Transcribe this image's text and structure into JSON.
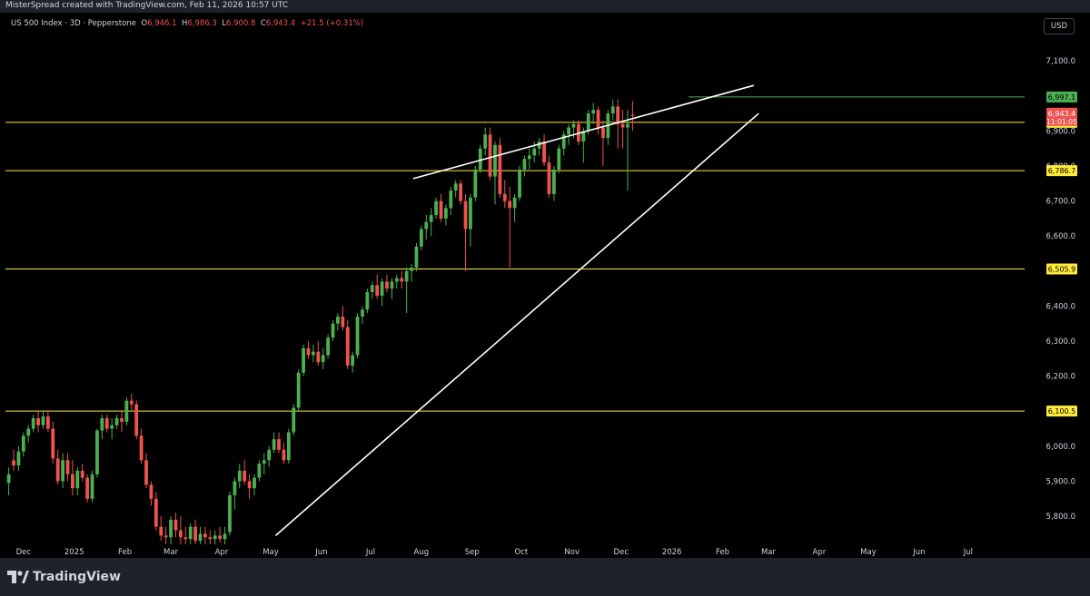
{
  "header": {
    "creator_text": "MisterSpread created with TradingView.com, Feb 11, 2026 10:57 UTC",
    "symbol": "US 500 Index · 3D · Pepperstone",
    "ohlc": {
      "o_label": "O",
      "o": "6,946.1",
      "h_label": "H",
      "h": "6,986.3",
      "l_label": "L",
      "l": "6,900.8",
      "c_label": "C",
      "c": "6,943.4",
      "change": "+21.5 (+0.31%)"
    },
    "currency_button": "USD"
  },
  "footer": {
    "logo_icon": "tradingview-logo-icon",
    "logo_text": "TradingView"
  },
  "colors": {
    "background": "#000000",
    "up": "#4caf50",
    "down": "#ef5350",
    "level_yellow": "#ffeb3b",
    "level_green": "#4caf50",
    "trendline": "#ffffff",
    "grid": "#131722"
  },
  "chart_data": {
    "type": "candlestick",
    "grid": false,
    "ylim": [
      5720,
      7160
    ],
    "y_ticks": [
      5800,
      5900,
      6000,
      6100,
      6200,
      6300,
      6400,
      6500,
      6600,
      6700,
      6800,
      6900,
      7000,
      7100
    ],
    "y_tick_labels": [
      "5,800.0",
      "5,900.0",
      "6,000.0",
      "6,100.0",
      "6,200.0",
      "6,300.0",
      "6,400.0",
      "6,500.0",
      "6,600.0",
      "6,700.0",
      "6,800.0",
      "6,900.0",
      "7,000.0",
      "7,100.0"
    ],
    "x_tick_labels": [
      {
        "label": "Dec",
        "date": "2024-12-01"
      },
      {
        "label": "2025",
        "date": "2025-01-01"
      },
      {
        "label": "Feb",
        "date": "2025-02-01"
      },
      {
        "label": "Mar",
        "date": "2025-03-01"
      },
      {
        "label": "Apr",
        "date": "2025-04-01"
      },
      {
        "label": "May",
        "date": "2025-05-01"
      },
      {
        "label": "Jun",
        "date": "2025-06-01"
      },
      {
        "label": "Jul",
        "date": "2025-07-01"
      },
      {
        "label": "Aug",
        "date": "2025-08-01"
      },
      {
        "label": "Sep",
        "date": "2025-09-01"
      },
      {
        "label": "Oct",
        "date": "2025-10-01"
      },
      {
        "label": "Nov",
        "date": "2025-11-01"
      },
      {
        "label": "Dec",
        "date": "2025-12-01"
      },
      {
        "label": "2026",
        "date": "2026-01-01"
      },
      {
        "label": "Feb",
        "date": "2026-02-01"
      },
      {
        "label": "Mar",
        "date": "2026-03-01"
      },
      {
        "label": "Apr",
        "date": "2026-04-01"
      },
      {
        "label": "May",
        "date": "2026-05-01"
      },
      {
        "label": "Jun",
        "date": "2026-06-01"
      },
      {
        "label": "Jul",
        "date": "2026-07-01"
      }
    ],
    "x_range": [
      "2024-11-20",
      "2026-07-31"
    ],
    "candle_interval_days": 3,
    "first_candle_date": "2024-11-22",
    "candles": [
      [
        5895,
        5940,
        5860,
        5920
      ],
      [
        5960,
        5990,
        5930,
        5945
      ],
      [
        5945,
        6000,
        5930,
        5985
      ],
      [
        5985,
        6040,
        5970,
        6030
      ],
      [
        6030,
        6060,
        6010,
        6050
      ],
      [
        6050,
        6090,
        6040,
        6080
      ],
      [
        6080,
        6100,
        6040,
        6060
      ],
      [
        6060,
        6100,
        6050,
        6085
      ],
      [
        6085,
        6100,
        6040,
        6050
      ],
      [
        6050,
        6070,
        5950,
        5965
      ],
      [
        5965,
        5990,
        5890,
        5900
      ],
      [
        5900,
        5980,
        5880,
        5960
      ],
      [
        5960,
        5980,
        5900,
        5920
      ],
      [
        5920,
        5960,
        5860,
        5880
      ],
      [
        5880,
        5940,
        5860,
        5930
      ],
      [
        5930,
        5950,
        5900,
        5910
      ],
      [
        5910,
        5920,
        5840,
        5850
      ],
      [
        5850,
        5930,
        5840,
        5920
      ],
      [
        5920,
        6050,
        5910,
        6045
      ],
      [
        6045,
        6090,
        6020,
        6080
      ],
      [
        6080,
        6090,
        6040,
        6050
      ],
      [
        6050,
        6080,
        6020,
        6060
      ],
      [
        6060,
        6090,
        6050,
        6080
      ],
      [
        6080,
        6100,
        6040,
        6070
      ],
      [
        6070,
        6140,
        6060,
        6130
      ],
      [
        6130,
        6150,
        6100,
        6120
      ],
      [
        6120,
        6130,
        6020,
        6030
      ],
      [
        6030,
        6050,
        5950,
        5960
      ],
      [
        5960,
        5980,
        5880,
        5890
      ],
      [
        5890,
        5900,
        5830,
        5850
      ],
      [
        5850,
        5870,
        5760,
        5770
      ],
      [
        5770,
        5800,
        5730,
        5745
      ],
      [
        5745,
        5770,
        5720,
        5740
      ],
      [
        5740,
        5800,
        5720,
        5790
      ],
      [
        5790,
        5810,
        5740,
        5760
      ],
      [
        5760,
        5800,
        5720,
        5740
      ],
      [
        5740,
        5770,
        5720,
        5735
      ],
      [
        5735,
        5780,
        5720,
        5770
      ],
      [
        5770,
        5790,
        5720,
        5730
      ],
      [
        5730,
        5770,
        5720,
        5750
      ],
      [
        5750,
        5770,
        5720,
        5740
      ],
      [
        5740,
        5760,
        5720,
        5735
      ],
      [
        5735,
        5760,
        5720,
        5745
      ],
      [
        5745,
        5770,
        5725,
        5735
      ],
      [
        5735,
        5770,
        5720,
        5750
      ],
      [
        5755,
        5870,
        5745,
        5860
      ],
      [
        5860,
        5910,
        5820,
        5900
      ],
      [
        5900,
        5950,
        5880,
        5930
      ],
      [
        5930,
        5960,
        5890,
        5900
      ],
      [
        5900,
        5920,
        5850,
        5880
      ],
      [
        5880,
        5920,
        5860,
        5910
      ],
      [
        5910,
        5960,
        5900,
        5950
      ],
      [
        5950,
        5980,
        5920,
        5960
      ],
      [
        5960,
        6000,
        5940,
        5990
      ],
      [
        5990,
        6040,
        5980,
        6020
      ],
      [
        6020,
        6040,
        5980,
        5990
      ],
      [
        5990,
        6010,
        5950,
        5960
      ],
      [
        5960,
        6050,
        5950,
        6040
      ],
      [
        6040,
        6120,
        6030,
        6110
      ],
      [
        6110,
        6220,
        6100,
        6210
      ],
      [
        6210,
        6290,
        6200,
        6280
      ],
      [
        6280,
        6300,
        6250,
        6260
      ],
      [
        6260,
        6290,
        6240,
        6270
      ],
      [
        6270,
        6300,
        6230,
        6240
      ],
      [
        6240,
        6280,
        6220,
        6260
      ],
      [
        6260,
        6320,
        6250,
        6310
      ],
      [
        6310,
        6360,
        6300,
        6350
      ],
      [
        6350,
        6380,
        6330,
        6370
      ],
      [
        6370,
        6400,
        6330,
        6340
      ],
      [
        6340,
        6360,
        6220,
        6230
      ],
      [
        6230,
        6270,
        6210,
        6260
      ],
      [
        6260,
        6380,
        6250,
        6370
      ],
      [
        6370,
        6400,
        6350,
        6390
      ],
      [
        6390,
        6450,
        6380,
        6440
      ],
      [
        6440,
        6470,
        6420,
        6460
      ],
      [
        6460,
        6490,
        6420,
        6430
      ],
      [
        6430,
        6480,
        6400,
        6470
      ],
      [
        6470,
        6490,
        6440,
        6450
      ],
      [
        6450,
        6480,
        6420,
        6470
      ],
      [
        6470,
        6490,
        6450,
        6480
      ],
      [
        6480,
        6500,
        6450,
        6470
      ],
      [
        6470,
        6510,
        6380,
        6500
      ],
      [
        6500,
        6520,
        6470,
        6510
      ],
      [
        6510,
        6580,
        6500,
        6570
      ],
      [
        6570,
        6630,
        6560,
        6620
      ],
      [
        6620,
        6660,
        6590,
        6640
      ],
      [
        6640,
        6680,
        6600,
        6660
      ],
      [
        6660,
        6710,
        6650,
        6700
      ],
      [
        6700,
        6720,
        6640,
        6650
      ],
      [
        6650,
        6690,
        6630,
        6680
      ],
      [
        6680,
        6740,
        6660,
        6730
      ],
      [
        6730,
        6760,
        6710,
        6750
      ],
      [
        6750,
        6760,
        6690,
        6700
      ],
      [
        6700,
        6720,
        6500,
        6620
      ],
      [
        6620,
        6720,
        6570,
        6710
      ],
      [
        6710,
        6800,
        6700,
        6790
      ],
      [
        6790,
        6860,
        6780,
        6850
      ],
      [
        6850,
        6910,
        6830,
        6890
      ],
      [
        6890,
        6910,
        6760,
        6770
      ],
      [
        6770,
        6870,
        6690,
        6860
      ],
      [
        6860,
        6880,
        6710,
        6720
      ],
      [
        6720,
        6760,
        6680,
        6700
      ],
      [
        6700,
        6740,
        6510,
        6680
      ],
      [
        6680,
        6720,
        6640,
        6710
      ],
      [
        6710,
        6800,
        6700,
        6790
      ],
      [
        6790,
        6830,
        6770,
        6820
      ],
      [
        6820,
        6850,
        6790,
        6830
      ],
      [
        6830,
        6870,
        6810,
        6850
      ],
      [
        6850,
        6880,
        6830,
        6870
      ],
      [
        6870,
        6890,
        6800,
        6810
      ],
      [
        6810,
        6830,
        6710,
        6720
      ],
      [
        6720,
        6800,
        6700,
        6790
      ],
      [
        6790,
        6860,
        6780,
        6850
      ],
      [
        6850,
        6900,
        6830,
        6890
      ],
      [
        6890,
        6920,
        6860,
        6910
      ],
      [
        6910,
        6930,
        6880,
        6920
      ],
      [
        6920,
        6930,
        6860,
        6870
      ],
      [
        6870,
        6910,
        6810,
        6900
      ],
      [
        6900,
        6960,
        6890,
        6950
      ],
      [
        6950,
        6980,
        6920,
        6960
      ],
      [
        6960,
        6970,
        6890,
        6910
      ],
      [
        6910,
        6930,
        6800,
        6880
      ],
      [
        6880,
        6960,
        6860,
        6950
      ],
      [
        6950,
        6990,
        6930,
        6970
      ],
      [
        6970,
        6990,
        6850,
        6920
      ],
      [
        6920,
        6960,
        6850,
        6910
      ],
      [
        6910,
        6960,
        6730,
        6920
      ],
      [
        6946,
        6986,
        6900,
        6943
      ]
    ],
    "annotations": {
      "horizontal_levels": [
        {
          "price": 6997.1,
          "label": "6,997.1",
          "color": "#4caf50",
          "partial": true
        },
        {
          "price": 6924.6,
          "label": "6,924.6",
          "color": "#ffeb3b"
        },
        {
          "price": 6786.7,
          "label": "6,786.7",
          "color": "#ffeb3b"
        },
        {
          "price": 6505.9,
          "label": "6,505.9",
          "color": "#ffeb3b"
        },
        {
          "price": 6100.5,
          "label": "6,100.5",
          "color": "#ffeb3b"
        }
      ],
      "trendlines": [
        {
          "from": {
            "date": "2025-07-27",
            "price": 6764
          },
          "to": {
            "date": "2026-02-20",
            "price": 7030
          }
        },
        {
          "from": {
            "date": "2025-05-04",
            "price": 5745
          },
          "to": {
            "date": "2026-02-23",
            "price": 6950
          }
        }
      ],
      "last_price": {
        "label": "6,943.4",
        "countdown": "11:01:05",
        "color": "#ef5350"
      }
    }
  }
}
